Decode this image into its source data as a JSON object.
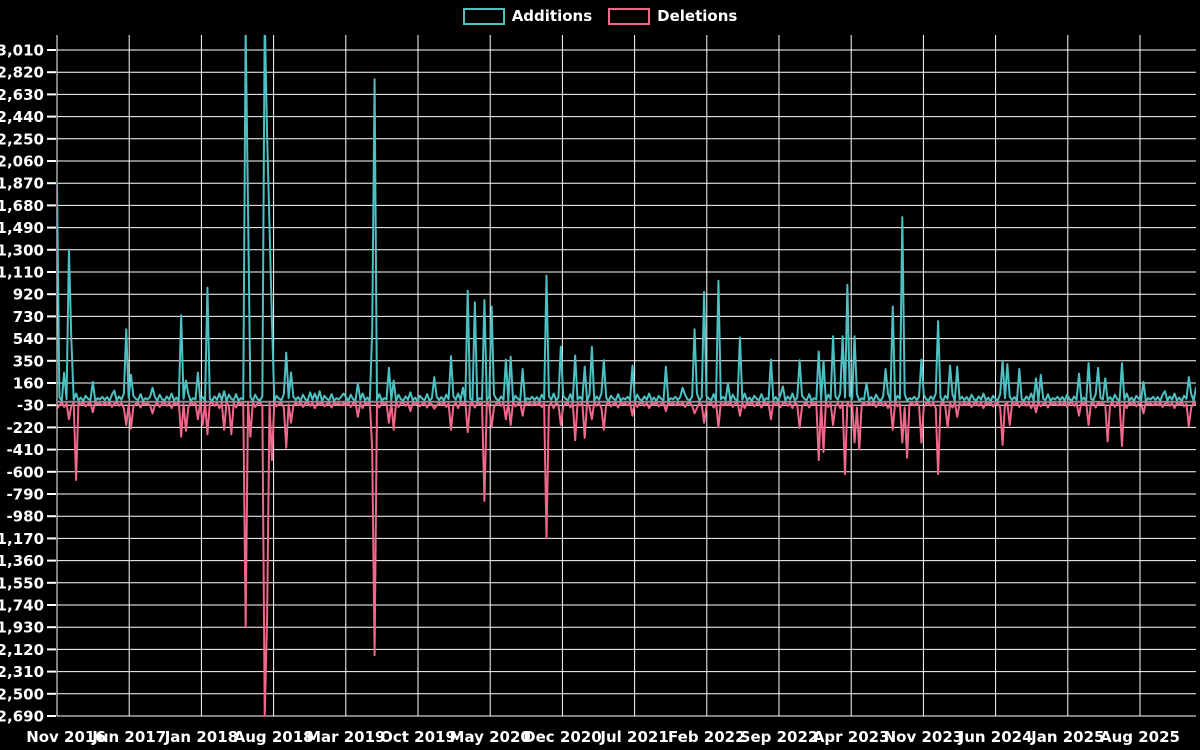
{
  "chart_data": {
    "type": "line",
    "title": "",
    "legend_position": "top",
    "grid": true,
    "weeks_total": 478,
    "x_tick_labels": [
      "Nov 2016",
      "Jun 2017",
      "Jan 2018",
      "Aug 2018",
      "Mar 2019",
      "Oct 2019",
      "May 2020",
      "Dec 2020",
      "Jul 2021",
      "Feb 2022",
      "Sep 2022",
      "Apr 2023",
      "Nov 2023",
      "Jun 2024",
      "Jan 2025",
      "Aug 2025"
    ],
    "y_axis": {
      "max": 3010,
      "min": -2690,
      "step": 190
    },
    "colors": {
      "background": "#000000",
      "grid": "#ffffff",
      "zero_line": "#8a8a8a",
      "text": "#ffffff",
      "additions": "#4cc0c2",
      "deletions": "#f0678c"
    },
    "series": [
      {
        "name": "Additions",
        "color": "#4cc0c2",
        "spikes": [
          [
            0,
            1870
          ],
          [
            3,
            250
          ],
          [
            5,
            1300
          ],
          [
            6,
            530
          ],
          [
            15,
            170
          ],
          [
            24,
            95
          ],
          [
            29,
            620
          ],
          [
            31,
            230
          ],
          [
            40,
            120
          ],
          [
            52,
            740
          ],
          [
            54,
            180
          ],
          [
            59,
            250
          ],
          [
            63,
            975
          ],
          [
            70,
            90
          ],
          [
            72,
            60
          ],
          [
            79,
            3200
          ],
          [
            80,
            1650
          ],
          [
            87,
            3300
          ],
          [
            88,
            2270
          ],
          [
            89,
            1500
          ],
          [
            90,
            700
          ],
          [
            96,
            420
          ],
          [
            98,
            250
          ],
          [
            106,
            80
          ],
          [
            110,
            90
          ],
          [
            120,
            70
          ],
          [
            126,
            160
          ],
          [
            132,
            600
          ],
          [
            133,
            2760
          ],
          [
            139,
            290
          ],
          [
            141,
            180
          ],
          [
            148,
            80
          ],
          [
            158,
            210
          ],
          [
            165,
            390
          ],
          [
            170,
            120
          ],
          [
            172,
            950
          ],
          [
            175,
            850
          ],
          [
            179,
            870
          ],
          [
            182,
            815
          ],
          [
            188,
            360
          ],
          [
            190,
            385
          ],
          [
            195,
            280
          ],
          [
            205,
            1080
          ],
          [
            211,
            470
          ],
          [
            217,
            395
          ],
          [
            221,
            300
          ],
          [
            224,
            470
          ],
          [
            229,
            355
          ],
          [
            241,
            310
          ],
          [
            255,
            300
          ],
          [
            262,
            120
          ],
          [
            267,
            620
          ],
          [
            271,
            940
          ],
          [
            277,
            1035
          ],
          [
            281,
            160
          ],
          [
            286,
            550
          ],
          [
            299,
            360
          ],
          [
            304,
            130
          ],
          [
            311,
            355
          ],
          [
            319,
            430
          ],
          [
            321,
            350
          ],
          [
            325,
            560
          ],
          [
            329,
            560
          ],
          [
            331,
            1000
          ],
          [
            334,
            560
          ],
          [
            339,
            160
          ],
          [
            347,
            280
          ],
          [
            350,
            815
          ],
          [
            354,
            1580
          ],
          [
            362,
            360
          ],
          [
            369,
            690
          ],
          [
            374,
            310
          ],
          [
            377,
            300
          ],
          [
            396,
            350
          ],
          [
            398,
            320
          ],
          [
            403,
            280
          ],
          [
            410,
            200
          ],
          [
            412,
            230
          ],
          [
            428,
            240
          ],
          [
            432,
            330
          ],
          [
            436,
            290
          ],
          [
            439,
            200
          ],
          [
            446,
            330
          ],
          [
            455,
            170
          ],
          [
            464,
            90
          ],
          [
            474,
            210
          ],
          [
            477,
            120
          ]
        ],
        "noise_cycle": [
          15,
          40,
          8,
          60,
          22,
          10,
          45,
          18,
          70,
          12,
          35,
          6,
          50,
          25,
          14,
          65,
          9,
          30,
          20,
          42
        ]
      },
      {
        "name": "Deletions",
        "color": "#f0678c",
        "spikes": [
          [
            0,
            -60
          ],
          [
            5,
            -150
          ],
          [
            8,
            -670
          ],
          [
            15,
            -90
          ],
          [
            29,
            -200
          ],
          [
            31,
            -230
          ],
          [
            40,
            -100
          ],
          [
            52,
            -300
          ],
          [
            54,
            -250
          ],
          [
            59,
            -150
          ],
          [
            61,
            -200
          ],
          [
            63,
            -280
          ],
          [
            70,
            -240
          ],
          [
            73,
            -280
          ],
          [
            79,
            -1930
          ],
          [
            81,
            -300
          ],
          [
            87,
            -2690
          ],
          [
            88,
            -1840
          ],
          [
            90,
            -500
          ],
          [
            96,
            -395
          ],
          [
            98,
            -180
          ],
          [
            126,
            -130
          ],
          [
            132,
            -400
          ],
          [
            133,
            -2170
          ],
          [
            139,
            -180
          ],
          [
            141,
            -240
          ],
          [
            148,
            -80
          ],
          [
            158,
            -60
          ],
          [
            165,
            -240
          ],
          [
            172,
            -260
          ],
          [
            179,
            -850
          ],
          [
            182,
            -220
          ],
          [
            188,
            -150
          ],
          [
            190,
            -200
          ],
          [
            195,
            -120
          ],
          [
            205,
            -1170
          ],
          [
            211,
            -200
          ],
          [
            217,
            -330
          ],
          [
            221,
            -310
          ],
          [
            224,
            -150
          ],
          [
            229,
            -240
          ],
          [
            241,
            -120
          ],
          [
            255,
            -80
          ],
          [
            267,
            -100
          ],
          [
            271,
            -180
          ],
          [
            277,
            -220
          ],
          [
            286,
            -120
          ],
          [
            299,
            -150
          ],
          [
            311,
            -225
          ],
          [
            319,
            -500
          ],
          [
            321,
            -430
          ],
          [
            325,
            -200
          ],
          [
            330,
            -620
          ],
          [
            334,
            -350
          ],
          [
            336,
            -410
          ],
          [
            350,
            -240
          ],
          [
            354,
            -350
          ],
          [
            356,
            -480
          ],
          [
            362,
            -350
          ],
          [
            369,
            -620
          ],
          [
            373,
            -220
          ],
          [
            377,
            -130
          ],
          [
            396,
            -370
          ],
          [
            399,
            -200
          ],
          [
            410,
            -90
          ],
          [
            428,
            -120
          ],
          [
            432,
            -200
          ],
          [
            440,
            -340
          ],
          [
            446,
            -380
          ],
          [
            455,
            -100
          ],
          [
            474,
            -210
          ]
        ],
        "noise_cycle": [
          -10,
          -30,
          -5,
          -45,
          -15,
          -8,
          -35,
          -12,
          -55,
          -9,
          -25,
          -4,
          -40,
          -18,
          -11,
          -50,
          -7,
          -22,
          -14,
          -32
        ]
      }
    ]
  }
}
